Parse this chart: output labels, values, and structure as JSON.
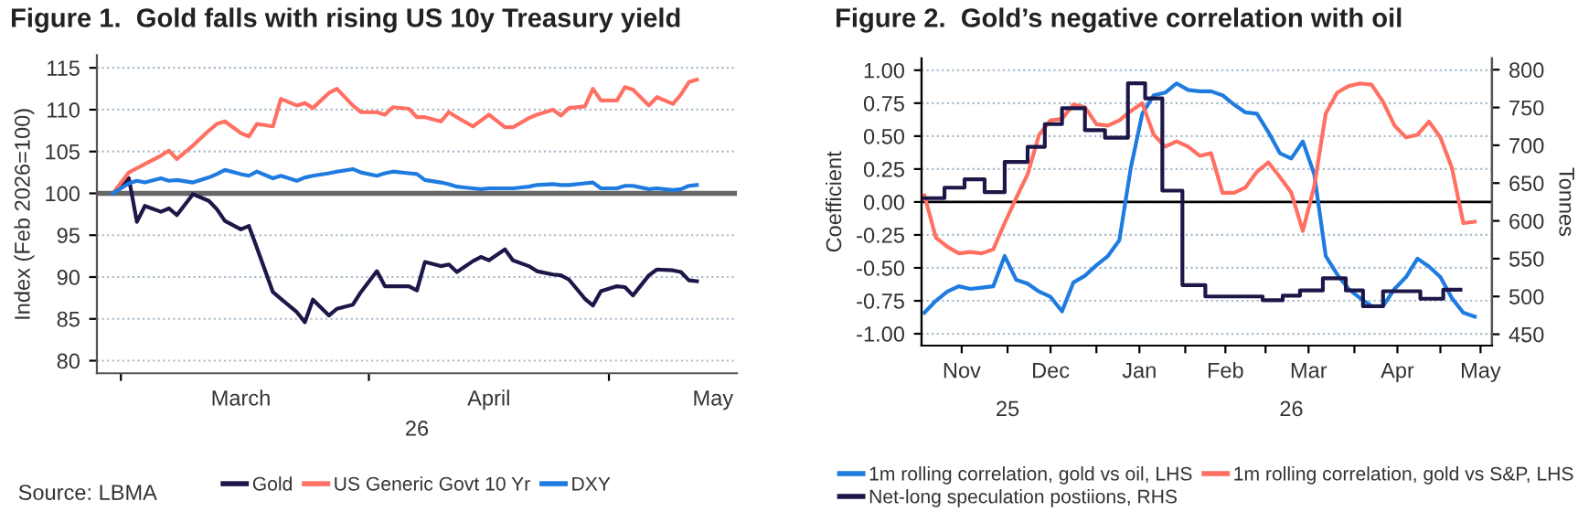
{
  "chart_data": [
    {
      "type": "line",
      "title": "Figure 1.  Gold falls with rising US 10y Treasury yield",
      "xlabel": "26",
      "ylabel": "Index (Feb 2026=100)",
      "x": [
        "2026-02-28",
        "2026-03-02",
        "2026-03-03",
        "2026-03-04",
        "2026-03-06",
        "2026-03-07",
        "2026-03-08",
        "2026-03-10",
        "2026-03-12",
        "2026-03-13",
        "2026-03-14",
        "2026-03-16",
        "2026-03-17",
        "2026-03-18",
        "2026-03-20",
        "2026-03-21",
        "2026-03-23",
        "2026-03-24",
        "2026-03-25",
        "2026-03-27",
        "2026-03-28",
        "2026-03-30",
        "2026-03-31",
        "2026-04-02",
        "2026-04-03",
        "2026-04-04",
        "2026-04-06",
        "2026-04-07",
        "2026-04-08",
        "2026-04-10",
        "2026-04-11",
        "2026-04-12",
        "2026-04-14",
        "2026-04-15",
        "2026-04-16",
        "2026-04-18",
        "2026-04-19",
        "2026-04-21",
        "2026-04-22",
        "2026-04-24",
        "2026-04-25",
        "2026-04-26",
        "2026-04-28",
        "2026-04-29",
        "2026-04-30",
        "2026-05-02",
        "2026-05-03",
        "2026-05-04",
        "2026-05-06",
        "2026-05-07",
        "2026-05-09",
        "2026-05-10",
        "2026-05-11",
        "2026-05-12"
      ],
      "series": [
        {
          "name": "Gold",
          "color": "#1c1748",
          "values": [
            100,
            101.8,
            96.6,
            98.5,
            97.8,
            98.2,
            97.4,
            99.9,
            99.1,
            98.1,
            96.7,
            95.7,
            96.1,
            93.5,
            88.2,
            87.4,
            85.8,
            84.6,
            87.3,
            85.4,
            86.2,
            86.7,
            88.2,
            90.7,
            88.9,
            88.9,
            88.9,
            88.4,
            91.8,
            91.3,
            91.5,
            90.6,
            91.9,
            92.4,
            92.0,
            93.3,
            92.0,
            91.3,
            90.7,
            90.3,
            90.2,
            89.7,
            87.4,
            86.6,
            88.3,
            88.9,
            88.8,
            87.8,
            90.2,
            90.9,
            90.8,
            90.6,
            89.6,
            89.5
          ]
        },
        {
          "name": "US Generic Govt 10 Yr",
          "color": "#ff7062",
          "values": [
            100,
            102.5,
            103.0,
            103.5,
            104.5,
            105.1,
            104.1,
            105.7,
            107.5,
            108.3,
            108.6,
            107.2,
            106.8,
            108.3,
            108.0,
            111.3,
            110.5,
            110.8,
            110.2,
            112.0,
            112.5,
            110.5,
            109.7,
            109.7,
            109.4,
            110.3,
            110.1,
            109.1,
            109.1,
            108.6,
            109.7,
            109.1,
            108.0,
            108.7,
            109.4,
            107.9,
            107.9,
            109.0,
            109.4,
            110.0,
            109.3,
            110.2,
            110.4,
            112.5,
            111.1,
            111.1,
            112.7,
            112.4,
            110.5,
            111.5,
            110.7,
            111.8,
            113.3,
            113.6
          ]
        },
        {
          "name": "DXY",
          "color": "#1e7be0",
          "values": [
            100,
            101.2,
            101.5,
            101.3,
            101.8,
            101.5,
            101.6,
            101.3,
            101.9,
            102.3,
            102.8,
            102.3,
            102.1,
            102.6,
            101.8,
            102.1,
            101.5,
            101.9,
            102.1,
            102.4,
            102.6,
            102.9,
            102.5,
            102.1,
            102.4,
            102.6,
            102.4,
            102.3,
            101.6,
            101.3,
            101.1,
            100.8,
            100.6,
            100.5,
            100.6,
            100.6,
            100.6,
            100.8,
            101.0,
            101.1,
            101.0,
            101.0,
            101.2,
            101.3,
            100.6,
            100.6,
            100.9,
            100.9,
            100.5,
            100.6,
            100.4,
            100.5,
            100.9,
            101.0
          ]
        }
      ],
      "xlim": [
        "2026-02-26",
        "2026-05-17"
      ],
      "xticks": [
        {
          "value": "2026-03-01",
          "label": null
        },
        {
          "value": "2026-03-16",
          "label": "March"
        },
        {
          "value": "2026-04-01",
          "label": null
        },
        {
          "value": "2026-04-16",
          "label": "April"
        },
        {
          "value": "2026-05-01",
          "label": null
        },
        {
          "value": "2026-05-14",
          "label": "May"
        }
      ],
      "ylim": [
        78.5,
        116.5
      ],
      "yticks": [
        80,
        85,
        90,
        95,
        100,
        105,
        110,
        115
      ],
      "ref_lines": [
        {
          "axis": "y",
          "value": 100,
          "color": "#666666"
        }
      ],
      "grid": "y",
      "legend": "bottom",
      "annotations": [
        "Source: LBMA"
      ]
    },
    {
      "type": "line",
      "title": "Figure 2.  Gold’s negative correlation with oil",
      "ylabel": "Coefficient",
      "y2label": "Tonnes",
      "x": [
        "2025-11-02",
        "2025-11-06",
        "2025-11-10",
        "2025-11-14",
        "2025-11-18",
        "2025-11-22",
        "2025-11-26",
        "2025-11-30",
        "2025-12-04",
        "2025-12-08",
        "2025-12-12",
        "2025-12-16",
        "2025-12-20",
        "2025-12-24",
        "2025-12-28",
        "2026-01-01",
        "2026-01-05",
        "2026-01-09",
        "2026-01-13",
        "2026-01-17",
        "2026-01-21",
        "2026-01-25",
        "2026-01-29",
        "2026-02-02",
        "2026-02-06",
        "2026-02-10",
        "2026-02-14",
        "2026-02-18",
        "2026-02-22",
        "2026-02-26",
        "2026-03-02",
        "2026-03-06",
        "2026-03-10",
        "2026-03-14",
        "2026-03-18",
        "2026-03-22",
        "2026-03-26",
        "2026-03-30",
        "2026-04-03",
        "2026-04-07",
        "2026-04-11",
        "2026-04-15",
        "2026-04-19",
        "2026-04-23",
        "2026-04-27",
        "2026-05-01",
        "2026-05-05",
        "2026-05-09",
        "2026-05-13"
      ],
      "series": [
        {
          "name": "1m rolling correlation, gold vs oil, LHS",
          "color": "#1e7be0",
          "values": [
            -0.84,
            -0.75,
            -0.68,
            -0.64,
            -0.66,
            -0.65,
            -0.64,
            -0.41,
            -0.59,
            -0.62,
            -0.68,
            -0.72,
            -0.83,
            -0.61,
            -0.56,
            -0.48,
            -0.41,
            -0.29,
            0.26,
            0.67,
            0.81,
            0.83,
            0.9,
            0.85,
            0.84,
            0.84,
            0.81,
            0.74,
            0.68,
            0.67,
            0.53,
            0.37,
            0.33,
            0.46,
            0.21,
            -0.41,
            -0.55,
            -0.66,
            -0.73,
            -0.79,
            -0.79,
            -0.66,
            -0.57,
            -0.43,
            -0.49,
            -0.57,
            -0.73,
            -0.84,
            -0.87
          ]
        },
        {
          "name": "1m rolling correlation, gold vs S&P, LHS",
          "color": "#ff7062",
          "values": [
            0.05,
            -0.27,
            -0.34,
            -0.39,
            -0.38,
            -0.39,
            -0.36,
            -0.16,
            0.03,
            0.21,
            0.51,
            0.62,
            0.63,
            0.74,
            0.72,
            0.59,
            0.58,
            0.62,
            0.69,
            0.75,
            0.51,
            0.42,
            0.46,
            0.42,
            0.35,
            0.37,
            0.07,
            0.07,
            0.11,
            0.23,
            0.3,
            0.19,
            0.07,
            -0.22,
            0.12,
            0.67,
            0.83,
            0.88,
            0.9,
            0.89,
            0.76,
            0.58,
            0.49,
            0.51,
            0.61,
            0.49,
            0.26,
            -0.16,
            -0.15
          ]
        },
        {
          "name": "Net-long speculation postiions, RHS",
          "color": "#1c1748",
          "type": "step",
          "axis": "y2",
          "x": [
            "2025-11-02",
            "2025-11-09",
            "2025-11-16",
            "2025-11-23",
            "2025-11-30",
            "2025-12-08",
            "2025-12-14",
            "2025-12-20",
            "2025-12-28",
            "2026-01-04",
            "2026-01-12",
            "2026-01-18",
            "2026-01-24",
            "2026-01-31",
            "2026-02-08",
            "2026-02-28",
            "2026-03-07",
            "2026-03-13",
            "2026-03-21",
            "2026-03-29",
            "2026-04-04",
            "2026-04-11",
            "2026-04-24",
            "2026-05-02",
            "2026-05-08"
          ],
          "values": [
            630,
            644,
            655,
            638,
            678,
            698,
            728,
            749,
            720,
            710,
            782,
            762,
            640,
            515,
            500,
            495,
            501,
            508,
            524,
            508,
            487,
            507,
            497,
            509,
            509
          ]
        }
      ],
      "xlim": [
        "2025-11-01",
        "2026-05-19"
      ],
      "xticks": [
        {
          "value": "2025-11-15",
          "label": "Nov"
        },
        {
          "value": "2025-12-01",
          "label": null
        },
        {
          "value": "2025-12-16",
          "label": "Dec"
        },
        {
          "value": "2026-01-01",
          "label": null
        },
        {
          "value": "2026-01-16",
          "label": "Jan"
        },
        {
          "value": "2026-02-01",
          "label": null
        },
        {
          "value": "2026-02-15",
          "label": "Feb"
        },
        {
          "value": "2026-03-01",
          "label": null
        },
        {
          "value": "2026-03-16",
          "label": "Mar"
        },
        {
          "value": "2026-04-01",
          "label": null
        },
        {
          "value": "2026-04-16",
          "label": "Apr"
        },
        {
          "value": "2026-05-01",
          "label": null
        },
        {
          "value": "2026-05-15",
          "label": "May"
        }
      ],
      "x2lim": [
        "2025-11-01",
        "2026-05-19"
      ],
      "x2ticks": [
        {
          "value": "2025-12-01",
          "label": "25"
        },
        {
          "value": "2026-03-10",
          "label": "26"
        }
      ],
      "ylim": [
        -1.09,
        1.09
      ],
      "yticks": [
        {
          "value": -1,
          "label": "-1.00"
        },
        {
          "value": -0.75,
          "label": "-0.75"
        },
        {
          "value": -0.5,
          "label": "-0.50"
        },
        {
          "value": -0.25,
          "label": "-0.25"
        },
        {
          "value": 0,
          "label": "0.00"
        },
        {
          "value": 0.25,
          "label": "0.25"
        },
        {
          "value": 0.5,
          "label": "0.50"
        },
        {
          "value": 0.75,
          "label": "0.75"
        },
        {
          "value": 1,
          "label": "1.00"
        }
      ],
      "y2lim": [
        435,
        815
      ],
      "y2ticks": [
        450,
        500,
        550,
        600,
        650,
        700,
        750,
        800
      ],
      "ref_lines": [
        {
          "axis": "y",
          "value": 0,
          "color": "#000000"
        }
      ],
      "grid": "y",
      "legend": "bottom"
    }
  ]
}
